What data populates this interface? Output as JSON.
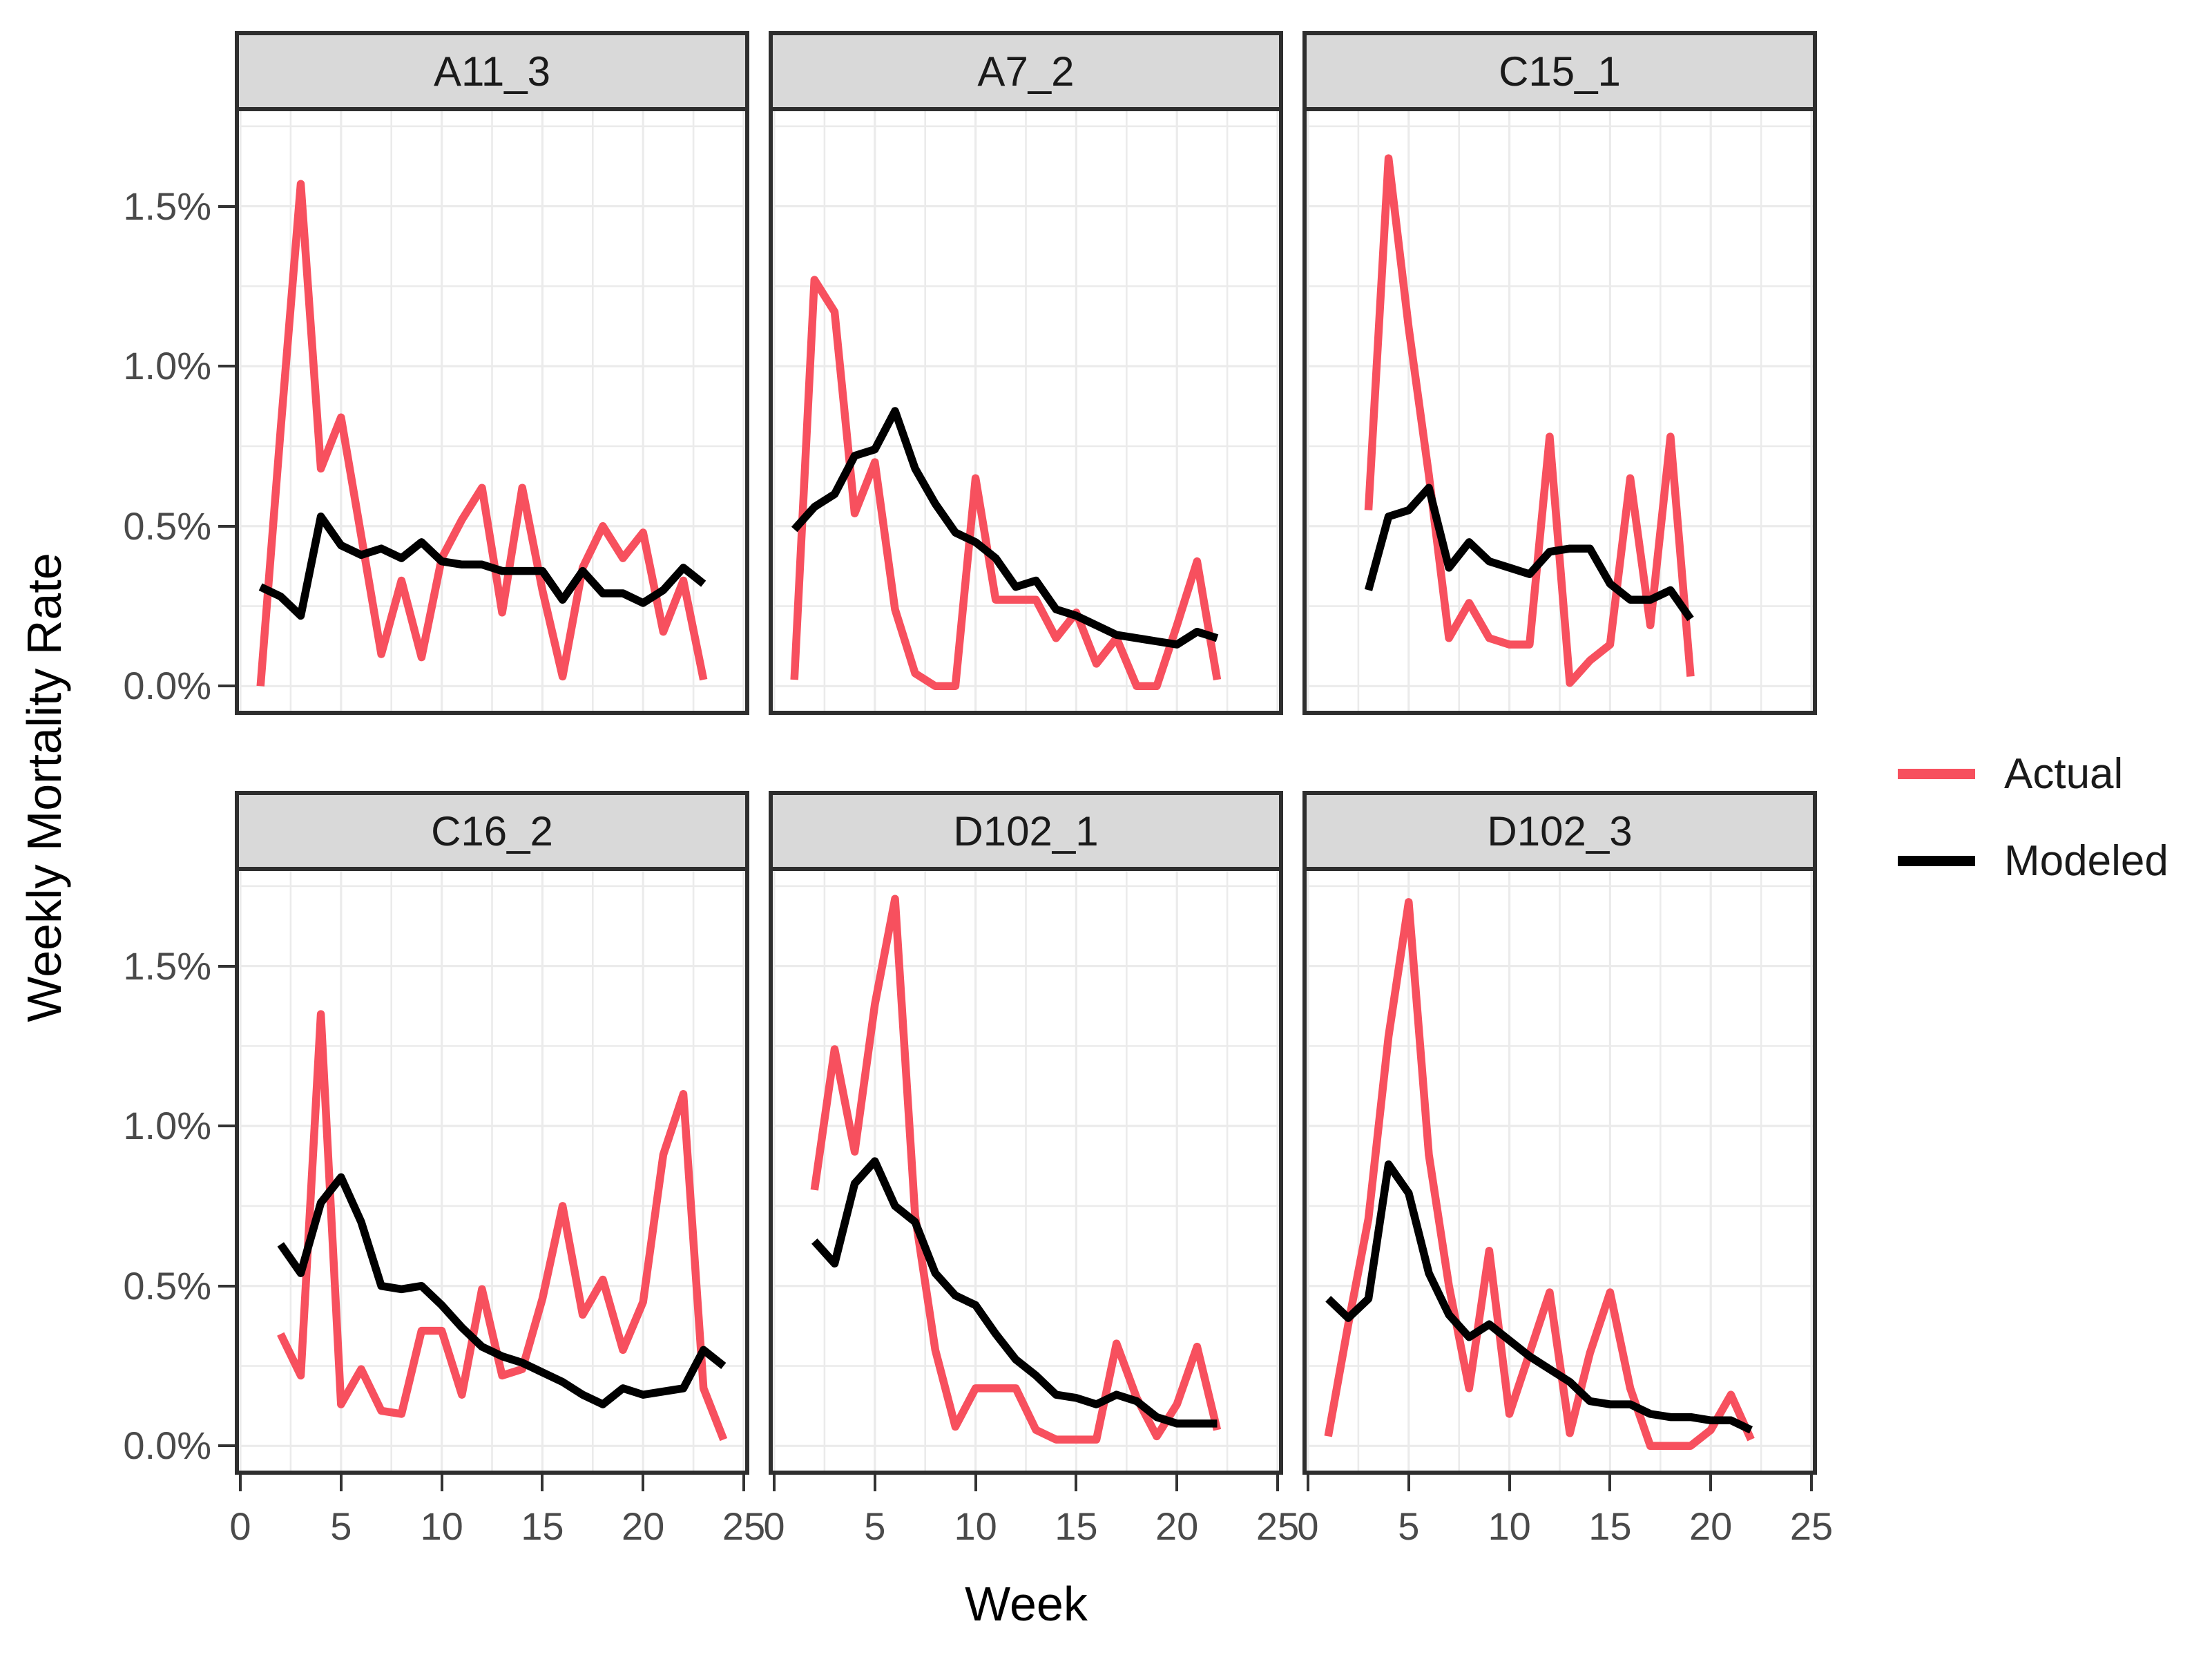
{
  "style": {
    "actual_color": "#f7505e",
    "modeled_color": "#000000",
    "grid_color": "#ebebeb",
    "panel_background": "#ffffff",
    "strip_fill": "#d9d9d9",
    "border_color": "#2e2e2e",
    "tick_label_color": "#4a4a4a"
  },
  "chart_data": {
    "type": "line",
    "xlabel": "Week",
    "ylabel": "Weekly Mortality Rate",
    "xlim": [
      0,
      25
    ],
    "ylim": [
      -0.09,
      1.81
    ],
    "x_ticks": [
      0,
      5,
      10,
      15,
      20,
      25
    ],
    "y_ticks": [
      {
        "value": 0.0,
        "label": "0.0%"
      },
      {
        "value": 0.5,
        "label": "0.5%"
      },
      {
        "value": 1.0,
        "label": "1.0%"
      },
      {
        "value": 1.5,
        "label": "1.5%"
      }
    ],
    "grid": {
      "major_x": [
        0,
        5,
        10,
        15,
        20,
        25
      ],
      "minor_x": [
        2.5,
        7.5,
        12.5,
        17.5,
        22.5
      ],
      "major_y": [
        0.0,
        0.5,
        1.0,
        1.5
      ],
      "minor_y": [
        0.25,
        0.75,
        1.25,
        1.75
      ]
    },
    "legend_position": "right",
    "legend": [
      {
        "label": "Actual",
        "color": "#f7505e"
      },
      {
        "label": "Modeled",
        "color": "#000000"
      }
    ],
    "facets": [
      {
        "title": "A11_3",
        "series": [
          {
            "name": "Actual",
            "x": [
              1,
              2,
              3,
              4,
              5,
              6,
              7,
              8,
              9,
              10,
              11,
              12,
              13,
              14,
              15,
              16,
              17,
              18,
              19,
              20,
              21,
              22,
              23
            ],
            "y": [
              0.0,
              0.8,
              1.57,
              0.68,
              0.84,
              0.47,
              0.1,
              0.33,
              0.09,
              0.4,
              0.52,
              0.62,
              0.23,
              0.62,
              0.3,
              0.03,
              0.37,
              0.5,
              0.4,
              0.48,
              0.17,
              0.33,
              0.02
            ]
          },
          {
            "name": "Modeled",
            "x": [
              1,
              2,
              3,
              4,
              5,
              6,
              7,
              8,
              9,
              10,
              11,
              12,
              13,
              14,
              15,
              16,
              17,
              18,
              19,
              20,
              21,
              22,
              23
            ],
            "y": [
              0.31,
              0.28,
              0.22,
              0.53,
              0.44,
              0.41,
              0.43,
              0.4,
              0.45,
              0.39,
              0.38,
              0.38,
              0.36,
              0.36,
              0.36,
              0.27,
              0.36,
              0.29,
              0.29,
              0.26,
              0.3,
              0.37,
              0.32
            ]
          }
        ]
      },
      {
        "title": "A7_2",
        "series": [
          {
            "name": "Actual",
            "x": [
              1,
              2,
              3,
              4,
              5,
              6,
              7,
              8,
              9,
              10,
              11,
              12,
              13,
              14,
              15,
              16,
              17,
              18,
              19,
              20,
              21,
              22
            ],
            "y": [
              0.02,
              1.27,
              1.17,
              0.54,
              0.7,
              0.24,
              0.04,
              0.0,
              0.0,
              0.65,
              0.27,
              0.27,
              0.27,
              0.15,
              0.23,
              0.07,
              0.15,
              0.0,
              0.0,
              0.19,
              0.39,
              0.02
            ]
          },
          {
            "name": "Modeled",
            "x": [
              1,
              2,
              3,
              4,
              5,
              6,
              7,
              8,
              9,
              10,
              11,
              12,
              13,
              14,
              15,
              16,
              17,
              18,
              19,
              20,
              21,
              22
            ],
            "y": [
              0.49,
              0.56,
              0.6,
              0.72,
              0.74,
              0.86,
              0.68,
              0.57,
              0.48,
              0.45,
              0.4,
              0.31,
              0.33,
              0.24,
              0.22,
              0.19,
              0.16,
              0.15,
              0.14,
              0.13,
              0.17,
              0.15
            ]
          }
        ]
      },
      {
        "title": "C15_1",
        "series": [
          {
            "name": "Actual",
            "x": [
              3,
              4,
              5,
              6,
              7,
              8,
              9,
              10,
              11,
              12,
              13,
              14,
              15,
              16,
              17,
              18,
              19
            ],
            "y": [
              0.55,
              1.65,
              1.12,
              0.66,
              0.15,
              0.26,
              0.15,
              0.13,
              0.13,
              0.78,
              0.01,
              0.08,
              0.13,
              0.65,
              0.19,
              0.78,
              0.03
            ]
          },
          {
            "name": "Modeled",
            "x": [
              3,
              4,
              5,
              6,
              7,
              8,
              9,
              10,
              11,
              12,
              13,
              14,
              15,
              16,
              17,
              18,
              19
            ],
            "y": [
              0.3,
              0.53,
              0.55,
              0.62,
              0.37,
              0.45,
              0.39,
              0.37,
              0.35,
              0.42,
              0.43,
              0.43,
              0.32,
              0.27,
              0.27,
              0.3,
              0.21
            ]
          }
        ]
      },
      {
        "title": "C16_2",
        "series": [
          {
            "name": "Actual",
            "x": [
              2,
              3,
              4,
              5,
              6,
              7,
              8,
              9,
              10,
              11,
              12,
              13,
              14,
              15,
              16,
              17,
              18,
              19,
              20,
              21,
              22,
              23,
              24
            ],
            "y": [
              0.35,
              0.22,
              1.35,
              0.13,
              0.24,
              0.11,
              0.1,
              0.36,
              0.36,
              0.16,
              0.49,
              0.22,
              0.24,
              0.46,
              0.75,
              0.41,
              0.52,
              0.3,
              0.45,
              0.91,
              1.1,
              0.18,
              0.02
            ]
          },
          {
            "name": "Modeled",
            "x": [
              2,
              3,
              4,
              5,
              6,
              7,
              8,
              9,
              10,
              11,
              12,
              13,
              14,
              15,
              16,
              17,
              18,
              19,
              20,
              21,
              22,
              23,
              24
            ],
            "y": [
              0.63,
              0.54,
              0.76,
              0.84,
              0.7,
              0.5,
              0.49,
              0.5,
              0.44,
              0.37,
              0.31,
              0.28,
              0.26,
              0.23,
              0.2,
              0.16,
              0.13,
              0.18,
              0.16,
              0.17,
              0.18,
              0.3,
              0.25
            ]
          }
        ]
      },
      {
        "title": "D102_1",
        "series": [
          {
            "name": "Actual",
            "x": [
              2,
              3,
              4,
              5,
              6,
              7,
              8,
              9,
              10,
              11,
              12,
              13,
              14,
              15,
              16,
              17,
              18,
              19,
              20,
              21,
              22
            ],
            "y": [
              0.8,
              1.24,
              0.92,
              1.38,
              1.71,
              0.72,
              0.3,
              0.06,
              0.18,
              0.18,
              0.18,
              0.05,
              0.02,
              0.02,
              0.02,
              0.32,
              0.15,
              0.03,
              0.13,
              0.31,
              0.05
            ]
          },
          {
            "name": "Modeled",
            "x": [
              2,
              3,
              4,
              5,
              6,
              7,
              8,
              9,
              10,
              11,
              12,
              13,
              14,
              15,
              16,
              17,
              18,
              19,
              20,
              21,
              22
            ],
            "y": [
              0.64,
              0.57,
              0.82,
              0.89,
              0.75,
              0.7,
              0.54,
              0.47,
              0.44,
              0.35,
              0.27,
              0.22,
              0.16,
              0.15,
              0.13,
              0.16,
              0.14,
              0.09,
              0.07,
              0.07,
              0.07
            ]
          }
        ]
      },
      {
        "title": "D102_3",
        "series": [
          {
            "name": "Actual",
            "x": [
              1,
              2,
              3,
              4,
              5,
              6,
              7,
              8,
              9,
              10,
              11,
              12,
              13,
              14,
              15,
              16,
              17,
              18,
              19,
              20,
              21,
              22
            ],
            "y": [
              0.03,
              0.38,
              0.71,
              1.28,
              1.7,
              0.91,
              0.5,
              0.18,
              0.61,
              0.1,
              0.29,
              0.48,
              0.04,
              0.29,
              0.48,
              0.18,
              0.0,
              0.0,
              0.0,
              0.05,
              0.16,
              0.02
            ]
          },
          {
            "name": "Modeled",
            "x": [
              1,
              2,
              3,
              4,
              5,
              6,
              7,
              8,
              9,
              10,
              11,
              12,
              13,
              14,
              15,
              16,
              17,
              18,
              19,
              20,
              21,
              22
            ],
            "y": [
              0.46,
              0.4,
              0.46,
              0.88,
              0.79,
              0.54,
              0.41,
              0.34,
              0.38,
              0.33,
              0.28,
              0.24,
              0.2,
              0.14,
              0.13,
              0.13,
              0.1,
              0.09,
              0.09,
              0.08,
              0.08,
              0.05
            ]
          }
        ]
      }
    ]
  }
}
